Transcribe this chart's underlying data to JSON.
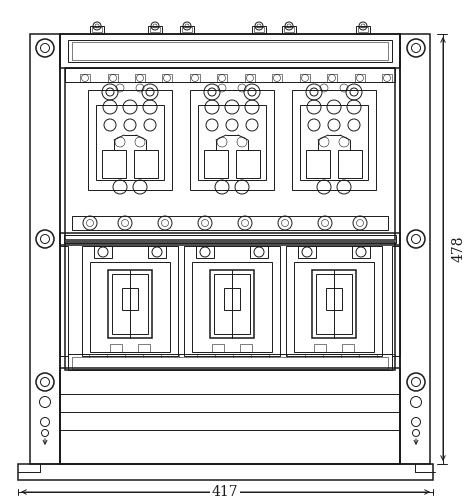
{
  "fig_width": 4.65,
  "fig_height": 5.0,
  "dpi": 100,
  "bg_color": "#ffffff",
  "lc": "#1a1a1a",
  "lw0": 0.4,
  "lw1": 0.7,
  "lw2": 1.1,
  "lw3": 1.6,
  "dim_478": "478",
  "dim_417": "417",
  "font_size_dim": 10
}
